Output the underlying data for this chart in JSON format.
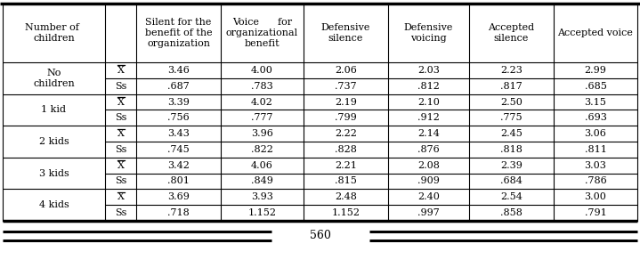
{
  "col_headers": [
    "Number of \nchildren",
    "",
    "Silent for the\nbenefit of the\norganization",
    "Voice      for\norganizational\nbenefit",
    "Defensive\nsilence",
    "Defensive\nvoicing",
    "Accepted\nsilence",
    "Accepted voice"
  ],
  "groups": [
    {
      "label": "No\nchildren",
      "rows": [
        {
          "stat": "X",
          "vals": [
            "3.46",
            "4.00",
            "2.06",
            "2.03",
            "2.23",
            "2.99"
          ]
        },
        {
          "stat": "Ss",
          "vals": [
            ".687",
            ".783",
            ".737",
            ".812",
            ".817",
            ".685"
          ]
        }
      ]
    },
    {
      "label": "1 kid",
      "rows": [
        {
          "stat": "X",
          "vals": [
            "3.39",
            "4.02",
            "2.19",
            "2.10",
            "2.50",
            "3.15"
          ]
        },
        {
          "stat": "Ss",
          "vals": [
            ".756",
            ".777",
            ".799",
            ".912",
            ".775",
            ".693"
          ]
        }
      ]
    },
    {
      "label": "2 kids",
      "rows": [
        {
          "stat": "X",
          "vals": [
            "3.43",
            "3.96",
            "2.22",
            "2.14",
            "2.45",
            "3.06"
          ]
        },
        {
          "stat": "Ss",
          "vals": [
            ".745",
            ".822",
            ".828",
            ".876",
            ".818",
            ".811"
          ]
        }
      ]
    },
    {
      "label": "3 kids",
      "rows": [
        {
          "stat": "X",
          "vals": [
            "3.42",
            "4.06",
            "2.21",
            "2.08",
            "2.39",
            "3.03"
          ]
        },
        {
          "stat": "Ss",
          "vals": [
            ".801",
            ".849",
            ".815",
            ".909",
            ".684",
            ".786"
          ]
        }
      ]
    },
    {
      "label": "4 kids",
      "rows": [
        {
          "stat": "X",
          "vals": [
            "3.69",
            "3.93",
            "2.48",
            "2.40",
            "2.54",
            "3.00"
          ]
        },
        {
          "stat": "Ss",
          "vals": [
            ".718",
            "1.152",
            "1.152",
            ".997",
            ".858",
            ".791"
          ]
        }
      ]
    }
  ],
  "footer_text": "560",
  "bg_color": "#ffffff",
  "text_color": "#000000",
  "font_size": 8.0
}
